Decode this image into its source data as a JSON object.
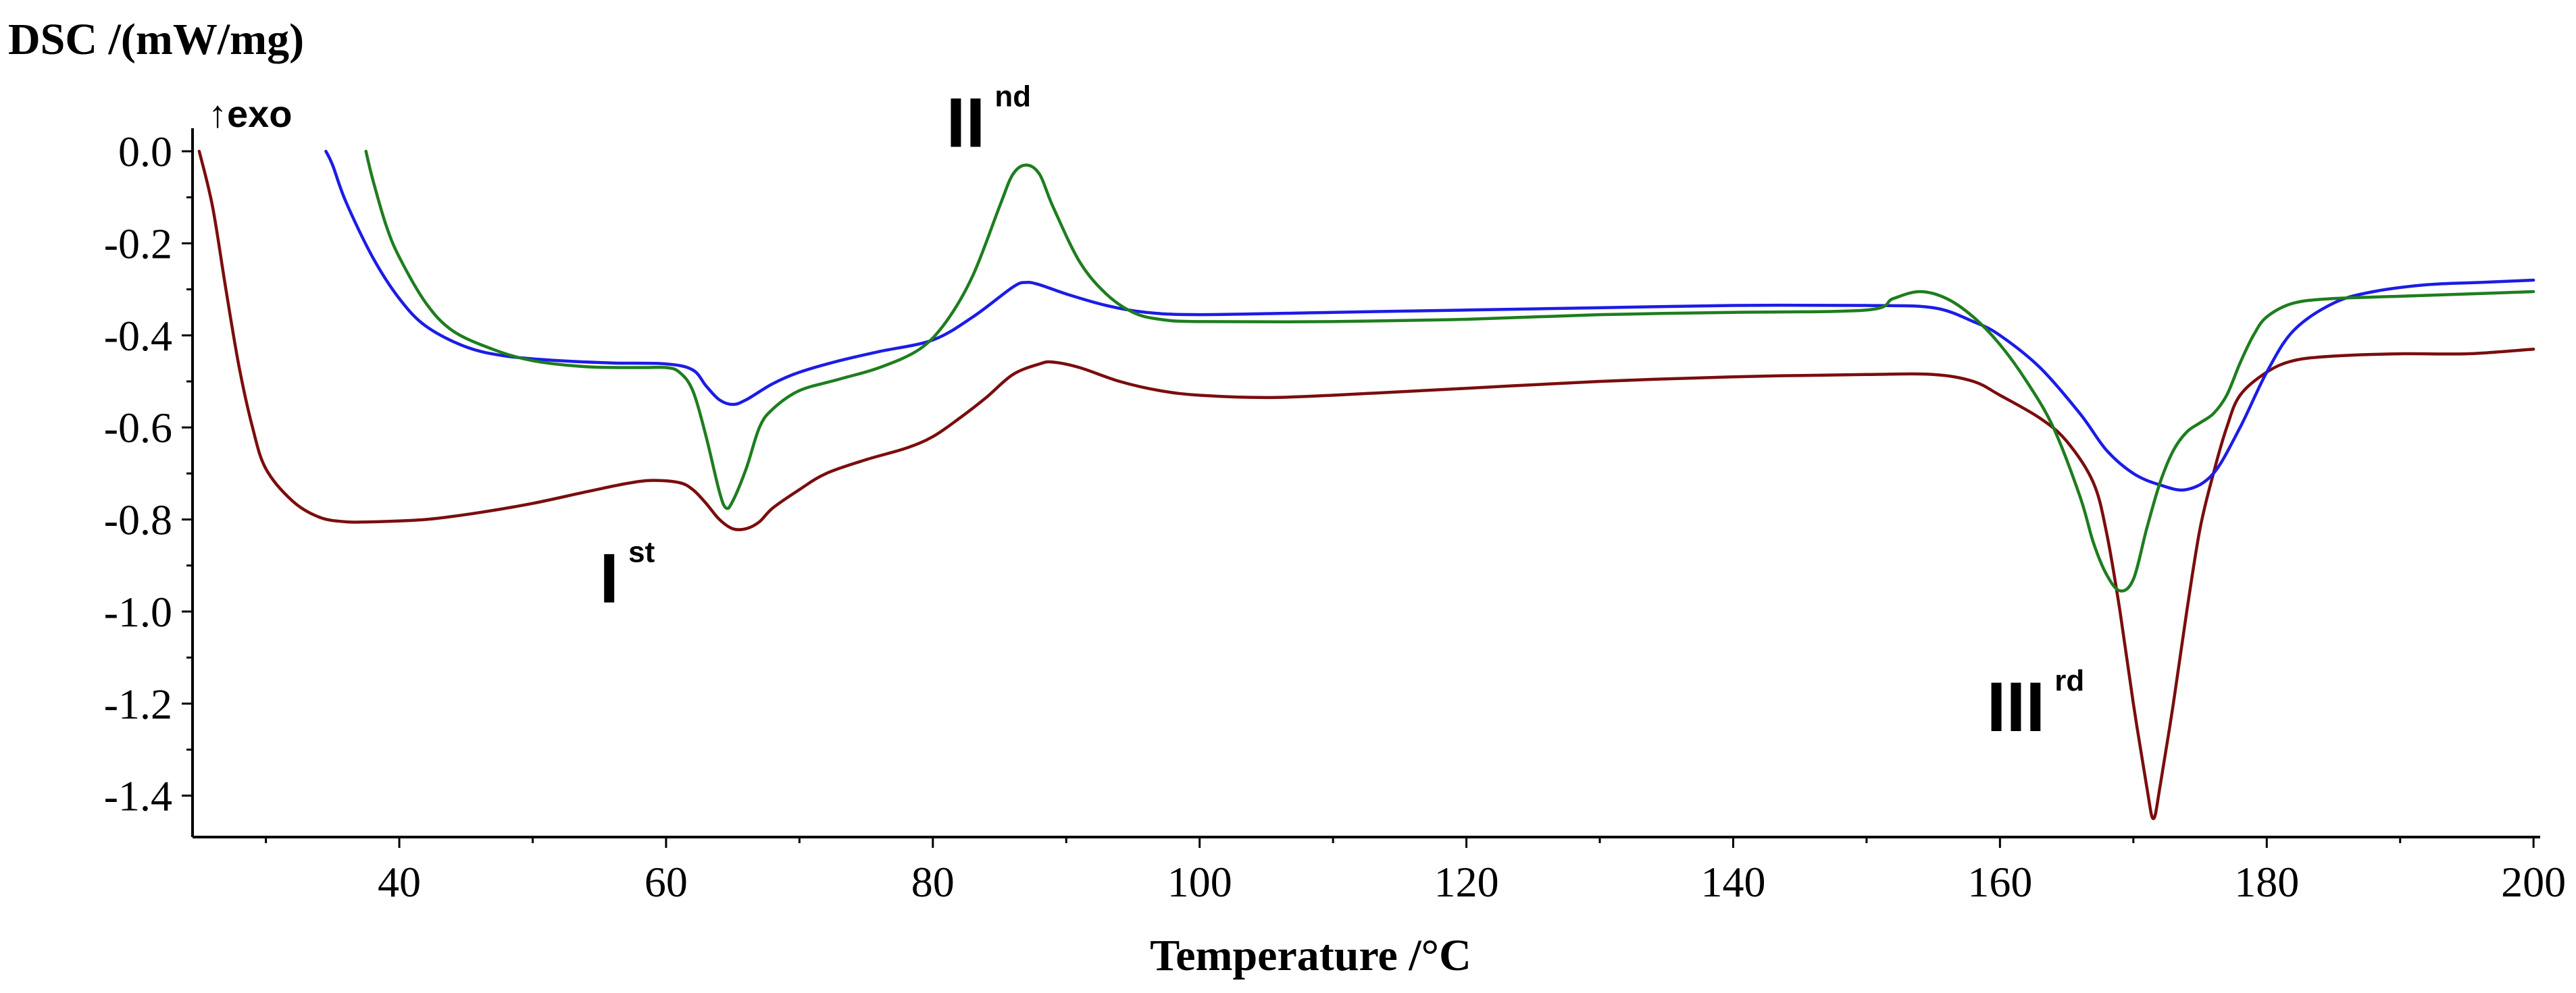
{
  "chart_data": {
    "type": "line",
    "title": "",
    "xlabel": "Temperature /°C",
    "ylabel": "DSC /(mW/mg)",
    "exo_label": "↑exo",
    "xlim": [
      24.5,
      200.5
    ],
    "ylim": [
      -1.49,
      0.05
    ],
    "x_ticks": [
      40,
      60,
      80,
      100,
      120,
      140,
      160,
      180,
      200
    ],
    "x_tick_labels": [
      "40",
      "60",
      "80",
      "100",
      "120",
      "140",
      "160",
      "180",
      "200"
    ],
    "y_ticks": [
      0.0,
      -0.2,
      -0.4,
      -0.6,
      -0.8,
      -1.0,
      -1.2,
      -1.4
    ],
    "y_tick_labels": [
      "0.0",
      "-0.2",
      "-0.4",
      "-0.6",
      "-0.8",
      "-1.0",
      "-1.2",
      "-1.4"
    ],
    "grid": false,
    "annotations": [
      {
        "main": "I",
        "sup": "st",
        "x": 55,
        "y": -0.98
      },
      {
        "main": "II",
        "sup": "nd",
        "x": 81,
        "y": 0.01
      },
      {
        "main": "III",
        "sup": "rd",
        "x": 159,
        "y": -1.26
      }
    ],
    "series": [
      {
        "name": "dark red",
        "color": "#7b0d0d",
        "points": [
          [
            25,
            0.0
          ],
          [
            26,
            -0.12
          ],
          [
            27,
            -0.3
          ],
          [
            28,
            -0.47
          ],
          [
            29,
            -0.6
          ],
          [
            30,
            -0.69
          ],
          [
            32,
            -0.76
          ],
          [
            34,
            -0.795
          ],
          [
            36,
            -0.805
          ],
          [
            38,
            -0.805
          ],
          [
            42,
            -0.8
          ],
          [
            46,
            -0.785
          ],
          [
            50,
            -0.765
          ],
          [
            54,
            -0.74
          ],
          [
            57,
            -0.722
          ],
          [
            59,
            -0.715
          ],
          [
            61,
            -0.72
          ],
          [
            62,
            -0.735
          ],
          [
            63,
            -0.765
          ],
          [
            64,
            -0.8
          ],
          [
            65,
            -0.82
          ],
          [
            66,
            -0.82
          ],
          [
            67,
            -0.805
          ],
          [
            68,
            -0.775
          ],
          [
            70,
            -0.735
          ],
          [
            72,
            -0.7
          ],
          [
            75,
            -0.67
          ],
          [
            78,
            -0.645
          ],
          [
            80,
            -0.62
          ],
          [
            82,
            -0.58
          ],
          [
            84,
            -0.535
          ],
          [
            86,
            -0.485
          ],
          [
            88,
            -0.462
          ],
          [
            89,
            -0.458
          ],
          [
            91,
            -0.47
          ],
          [
            94,
            -0.5
          ],
          [
            97,
            -0.52
          ],
          [
            100,
            -0.53
          ],
          [
            105,
            -0.535
          ],
          [
            110,
            -0.53
          ],
          [
            120,
            -0.515
          ],
          [
            130,
            -0.5
          ],
          [
            140,
            -0.49
          ],
          [
            150,
            -0.485
          ],
          [
            155,
            -0.485
          ],
          [
            158,
            -0.5
          ],
          [
            160,
            -0.53
          ],
          [
            163,
            -0.58
          ],
          [
            165,
            -0.63
          ],
          [
            167,
            -0.72
          ],
          [
            168,
            -0.83
          ],
          [
            169,
            -1.0
          ],
          [
            170,
            -1.2
          ],
          [
            171,
            -1.38
          ],
          [
            171.5,
            -1.45
          ],
          [
            172,
            -1.38
          ],
          [
            173,
            -1.2
          ],
          [
            174,
            -1.0
          ],
          [
            175,
            -0.82
          ],
          [
            176,
            -0.7
          ],
          [
            177,
            -0.6
          ],
          [
            178,
            -0.53
          ],
          [
            180,
            -0.48
          ],
          [
            182,
            -0.455
          ],
          [
            185,
            -0.445
          ],
          [
            190,
            -0.44
          ],
          [
            195,
            -0.44
          ],
          [
            200,
            -0.43
          ]
        ]
      },
      {
        "name": "blue",
        "color": "#1c1ce6",
        "points": [
          [
            34.5,
            0.0
          ],
          [
            35,
            -0.03
          ],
          [
            36,
            -0.11
          ],
          [
            38,
            -0.23
          ],
          [
            40,
            -0.32
          ],
          [
            42,
            -0.38
          ],
          [
            45,
            -0.425
          ],
          [
            48,
            -0.445
          ],
          [
            52,
            -0.455
          ],
          [
            56,
            -0.46
          ],
          [
            60,
            -0.462
          ],
          [
            62,
            -0.475
          ],
          [
            63,
            -0.51
          ],
          [
            64,
            -0.54
          ],
          [
            65,
            -0.55
          ],
          [
            66,
            -0.54
          ],
          [
            68,
            -0.505
          ],
          [
            70,
            -0.48
          ],
          [
            73,
            -0.455
          ],
          [
            76,
            -0.435
          ],
          [
            80,
            -0.41
          ],
          [
            83,
            -0.36
          ],
          [
            86,
            -0.295
          ],
          [
            87,
            -0.285
          ],
          [
            88,
            -0.29
          ],
          [
            90,
            -0.31
          ],
          [
            93,
            -0.335
          ],
          [
            96,
            -0.35
          ],
          [
            100,
            -0.355
          ],
          [
            110,
            -0.35
          ],
          [
            120,
            -0.345
          ],
          [
            130,
            -0.34
          ],
          [
            140,
            -0.335
          ],
          [
            150,
            -0.335
          ],
          [
            155,
            -0.34
          ],
          [
            158,
            -0.37
          ],
          [
            160,
            -0.4
          ],
          [
            163,
            -0.47
          ],
          [
            166,
            -0.57
          ],
          [
            168,
            -0.65
          ],
          [
            170,
            -0.7
          ],
          [
            172,
            -0.725
          ],
          [
            174,
            -0.735
          ],
          [
            176,
            -0.7
          ],
          [
            178,
            -0.6
          ],
          [
            180,
            -0.48
          ],
          [
            182,
            -0.39
          ],
          [
            185,
            -0.33
          ],
          [
            188,
            -0.305
          ],
          [
            192,
            -0.29
          ],
          [
            196,
            -0.285
          ],
          [
            200,
            -0.28
          ]
        ]
      },
      {
        "name": "green",
        "color": "#1e7d1e",
        "points": [
          [
            37.5,
            0.0
          ],
          [
            38,
            -0.06
          ],
          [
            39,
            -0.16
          ],
          [
            40,
            -0.23
          ],
          [
            42,
            -0.33
          ],
          [
            44,
            -0.39
          ],
          [
            47,
            -0.43
          ],
          [
            50,
            -0.455
          ],
          [
            54,
            -0.468
          ],
          [
            58,
            -0.47
          ],
          [
            60,
            -0.47
          ],
          [
            61,
            -0.48
          ],
          [
            62,
            -0.52
          ],
          [
            63,
            -0.62
          ],
          [
            64,
            -0.74
          ],
          [
            64.5,
            -0.775
          ],
          [
            65,
            -0.76
          ],
          [
            66,
            -0.69
          ],
          [
            67,
            -0.6
          ],
          [
            68,
            -0.56
          ],
          [
            70,
            -0.52
          ],
          [
            73,
            -0.495
          ],
          [
            76,
            -0.47
          ],
          [
            79,
            -0.43
          ],
          [
            81,
            -0.37
          ],
          [
            83,
            -0.27
          ],
          [
            85,
            -0.12
          ],
          [
            86,
            -0.05
          ],
          [
            87,
            -0.03
          ],
          [
            88,
            -0.05
          ],
          [
            89,
            -0.12
          ],
          [
            91,
            -0.24
          ],
          [
            93,
            -0.31
          ],
          [
            95,
            -0.35
          ],
          [
            97,
            -0.365
          ],
          [
            100,
            -0.37
          ],
          [
            110,
            -0.37
          ],
          [
            120,
            -0.365
          ],
          [
            130,
            -0.355
          ],
          [
            140,
            -0.35
          ],
          [
            150,
            -0.345
          ],
          [
            152,
            -0.32
          ],
          [
            154,
            -0.305
          ],
          [
            156,
            -0.32
          ],
          [
            158,
            -0.36
          ],
          [
            160,
            -0.42
          ],
          [
            162,
            -0.5
          ],
          [
            164,
            -0.6
          ],
          [
            166,
            -0.75
          ],
          [
            167,
            -0.85
          ],
          [
            168,
            -0.92
          ],
          [
            169,
            -0.955
          ],
          [
            170,
            -0.93
          ],
          [
            171,
            -0.82
          ],
          [
            172,
            -0.72
          ],
          [
            173,
            -0.65
          ],
          [
            174,
            -0.61
          ],
          [
            175,
            -0.59
          ],
          [
            176,
            -0.57
          ],
          [
            177,
            -0.53
          ],
          [
            178,
            -0.46
          ],
          [
            179,
            -0.4
          ],
          [
            180,
            -0.36
          ],
          [
            182,
            -0.33
          ],
          [
            185,
            -0.32
          ],
          [
            190,
            -0.315
          ],
          [
            195,
            -0.31
          ],
          [
            200,
            -0.305
          ]
        ]
      }
    ]
  }
}
